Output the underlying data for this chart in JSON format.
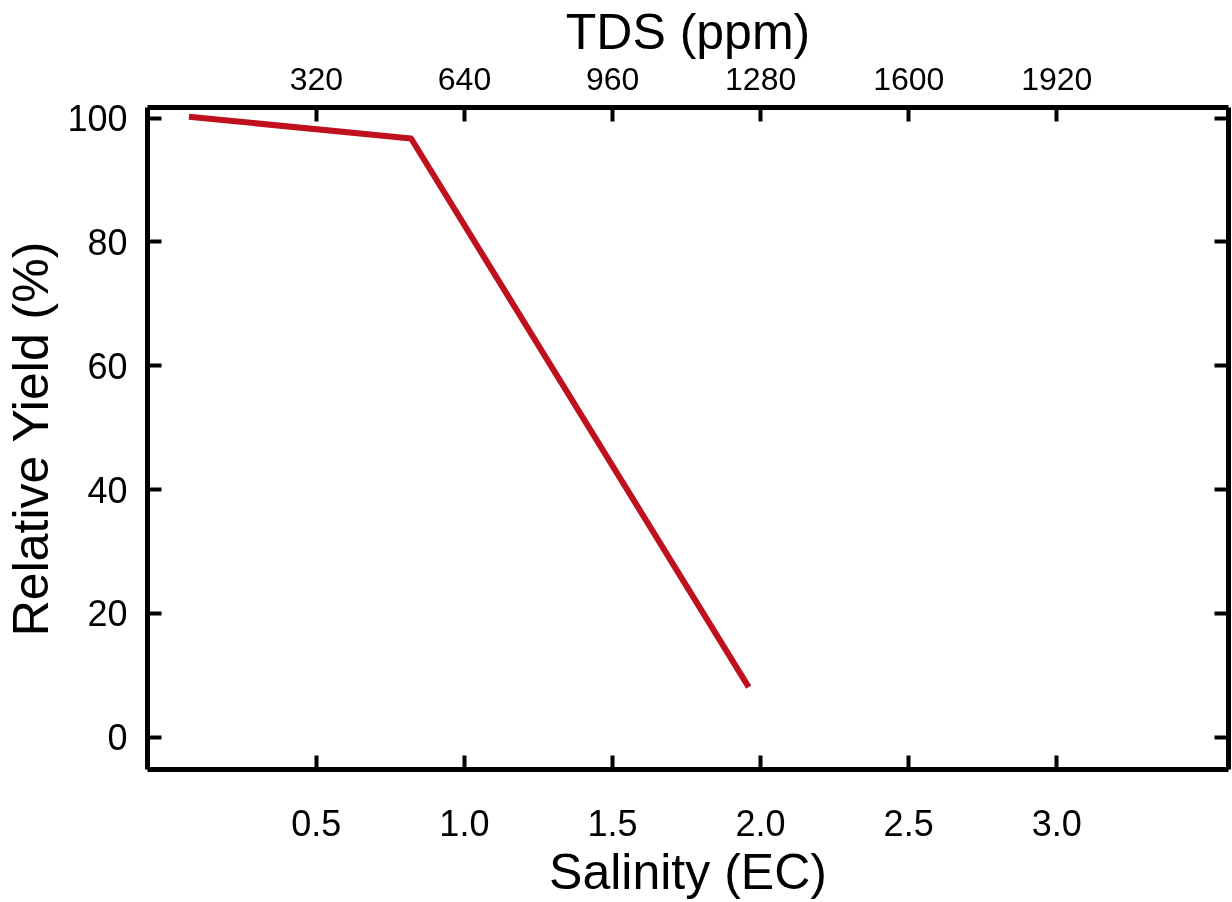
{
  "chart_data": {
    "type": "line",
    "xlabel": "Salinity (EC)",
    "ylabel": "Relative Yield (%)",
    "x2label": "TDS (ppm)",
    "x": [
      0.07,
      0.82,
      1.96
    ],
    "series": [
      {
        "color": "#c0101e",
        "values": [
          100.2,
          96.7,
          8.1
        ]
      }
    ],
    "xlim": [
      -0.07,
      3.58
    ],
    "xticks": [
      0.5,
      {
        "value": 1,
        "label": "1.0"
      },
      1.5,
      {
        "value": 2,
        "label": "2.0"
      },
      2.5,
      {
        "value": 3,
        "label": "3.0"
      }
    ],
    "x2lim": [
      -45,
      2291
    ],
    "x2ticks": [
      320,
      640,
      960,
      1280,
      1600,
      1920
    ],
    "ylim": [
      -5.2,
      101.7
    ],
    "yticks": [
      0,
      20,
      40,
      60,
      80,
      100
    ],
    "grid": false,
    "marker": "none",
    "line_style": "solid"
  }
}
